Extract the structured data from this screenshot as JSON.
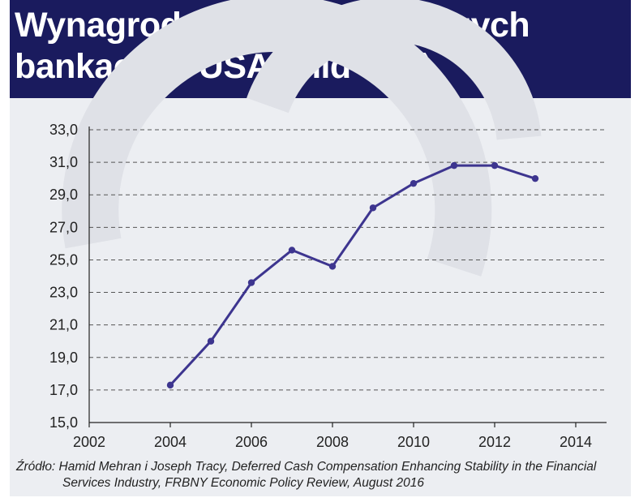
{
  "header": {
    "title_line1": "Wynagrodzenia w największych",
    "title_line2": "bankach w USA (mld dol.)"
  },
  "source": {
    "line1": "Źródło: Hamid Mehran i Joseph Tracy, Deferred Cash Compensation Enhancing Stability in the Financial",
    "line2": "Services Industry, FRBNY Economic Policy Review, August 2016"
  },
  "colors": {
    "header_bg": "#1a1b5e",
    "panel_bg": "#eceef2",
    "series": "#3d358f",
    "grid": "#555555"
  },
  "chart_data": {
    "type": "line",
    "title": "Wynagrodzenia w największych bankach w USA (mld dol.)",
    "xlabel": "",
    "ylabel": "",
    "xlim": [
      2002,
      2015
    ],
    "ylim": [
      15.0,
      33.0
    ],
    "x_ticks": [
      2002,
      2004,
      2006,
      2008,
      2010,
      2012,
      2014
    ],
    "y_ticks": [
      15.0,
      17.0,
      19.0,
      21.0,
      23.0,
      25.0,
      27.0,
      29.0,
      31.0,
      33.0
    ],
    "y_tick_labels": [
      "15,0",
      "17,0",
      "19,0",
      "21,0",
      "23,0",
      "25,0",
      "27,0",
      "29,0",
      "31,0",
      "33,0"
    ],
    "grid": "horizontal dashed",
    "series": [
      {
        "x": [
          2004,
          2005,
          2006,
          2007,
          2008,
          2009,
          2010,
          2011,
          2012,
          2013
        ],
        "values": [
          17.3,
          20.0,
          23.6,
          25.6,
          24.6,
          28.2,
          29.7,
          30.8,
          30.8,
          30.0
        ]
      }
    ]
  }
}
